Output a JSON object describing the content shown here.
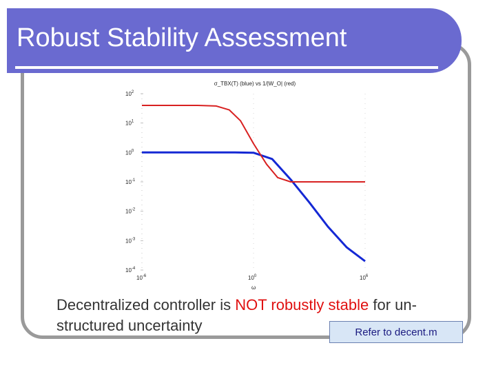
{
  "slide": {
    "title": "Robust Stability Assessment",
    "body_prefix": "Decentralized controller is ",
    "body_highlight": "NOT robustly stable",
    "body_suffix": " for un-structured uncertainty",
    "refer_label": "Refer to decent.m"
  },
  "colors": {
    "title_bg": "#6a6ad0",
    "blue_series": "#1428d4",
    "red_series": "#d82020",
    "highlight": "#e01010"
  },
  "chart_data": {
    "type": "line",
    "title": "σ_TBX(T) (blue) vs 1/|W_O| (red)",
    "xlabel": "ω",
    "x_scale": "log",
    "y_scale": "log",
    "xlim": [
      1e-06,
      1000000
    ],
    "ylim": [
      0.0001,
      100
    ],
    "x_ticks": [
      "10^-6",
      "10^0",
      "10^6"
    ],
    "y_ticks": [
      "10^2",
      "10^1",
      "10^0",
      "10^-1",
      "10^-2",
      "10^-3",
      "10^-4"
    ],
    "series": [
      {
        "color": "blue",
        "x": [
          1e-06,
          0.01,
          0.1,
          1,
          10,
          100,
          1000,
          10000,
          100000,
          1000000
        ],
        "y": [
          1,
          1,
          1,
          0.98,
          0.6,
          0.12,
          0.02,
          0.003,
          0.0006,
          0.0002
        ]
      },
      {
        "color": "red",
        "x": [
          1e-06,
          0.001,
          0.01,
          0.05,
          0.2,
          1,
          5,
          20,
          100,
          1000000
        ],
        "y": [
          40,
          40,
          38,
          28,
          12,
          2,
          0.4,
          0.14,
          0.1,
          0.1
        ]
      }
    ]
  }
}
